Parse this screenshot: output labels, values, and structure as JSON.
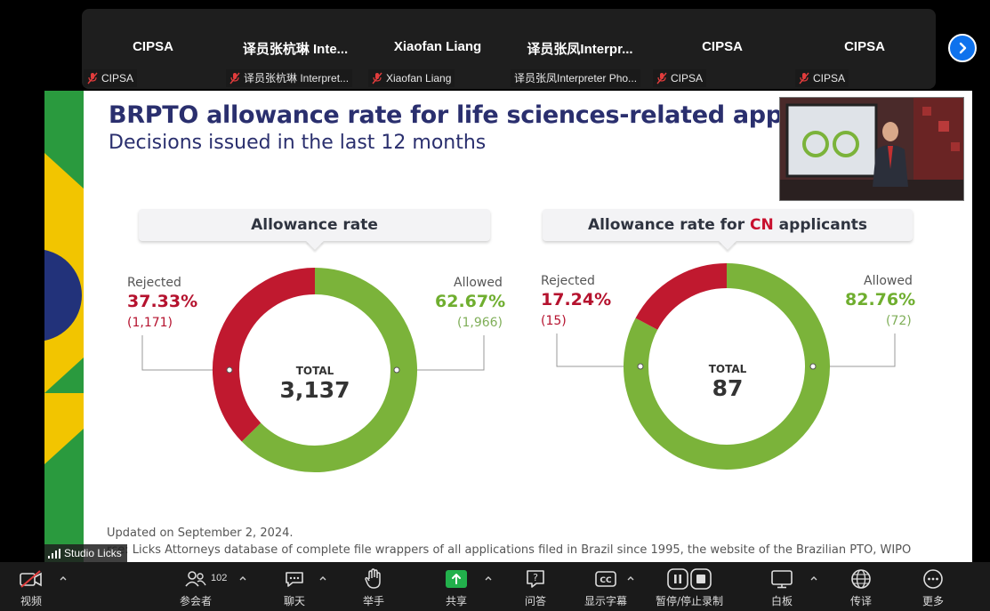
{
  "participants": [
    {
      "display": "CIPSA",
      "label": "CIPSA",
      "muted": true
    },
    {
      "display": "译员张杭琳 Inte...",
      "label": "译员张杭琳 Interpret...",
      "muted": true
    },
    {
      "display": "Xiaofan Liang",
      "label": "Xiaofan Liang",
      "muted": true
    },
    {
      "display": "译员张凤Interpr...",
      "label": "译员张凤Interpreter Pho...",
      "muted": false
    },
    {
      "display": "CIPSA",
      "label": "CIPSA",
      "muted": true
    },
    {
      "display": "CIPSA",
      "label": "CIPSA",
      "muted": true
    }
  ],
  "slide": {
    "title": "BRPTO allowance rate for life sciences-related app",
    "subtitle": "Decisions issued in the last 12 months",
    "left": {
      "heading": "Allowance rate",
      "rejected_label": "Rejected",
      "rejected_pct": "37.33%",
      "rejected_count": "(1,171)",
      "allowed_label": "Allowed",
      "allowed_pct": "62.67%",
      "allowed_count": "(1,966)",
      "total_label": "TOTAL",
      "total_value": "3,137",
      "rejected_fraction": 0.3733
    },
    "right": {
      "heading_prefix": "Allowance rate for ",
      "heading_highlight": "CN",
      "heading_suffix": " applicants",
      "rejected_label": "Rejected",
      "rejected_pct": "17.24%",
      "rejected_count": "(15)",
      "allowed_label": "Allowed",
      "allowed_pct": "82.76%",
      "allowed_count": "(72)",
      "total_label": "TOTAL",
      "total_value": "87",
      "rejected_fraction": 0.1724
    },
    "updated": "Updated on September 2, 2024.",
    "source": "rce: Licks Attorneys database of complete file wrappers of all applications filed in Brazil since 1995, the website of the Brazilian PTO, WIPO",
    "colors": {
      "rejected": "#c0192f",
      "allowed": "#7bb33a",
      "title": "#2a2f6e"
    }
  },
  "presenter_label": "Studio Licks",
  "toolbar": {
    "video": "视频",
    "participants": "参会者",
    "participants_count": "102",
    "chat": "聊天",
    "raise_hand": "举手",
    "share": "共享",
    "qa": "问答",
    "captions": "显示字幕",
    "recording": "暂停/停止录制",
    "whiteboard": "白板",
    "interpretation": "传译",
    "more": "更多"
  },
  "icons": {
    "mic": "mic-off-icon",
    "next": "chevron-right-icon",
    "signal": "signal-icon"
  }
}
